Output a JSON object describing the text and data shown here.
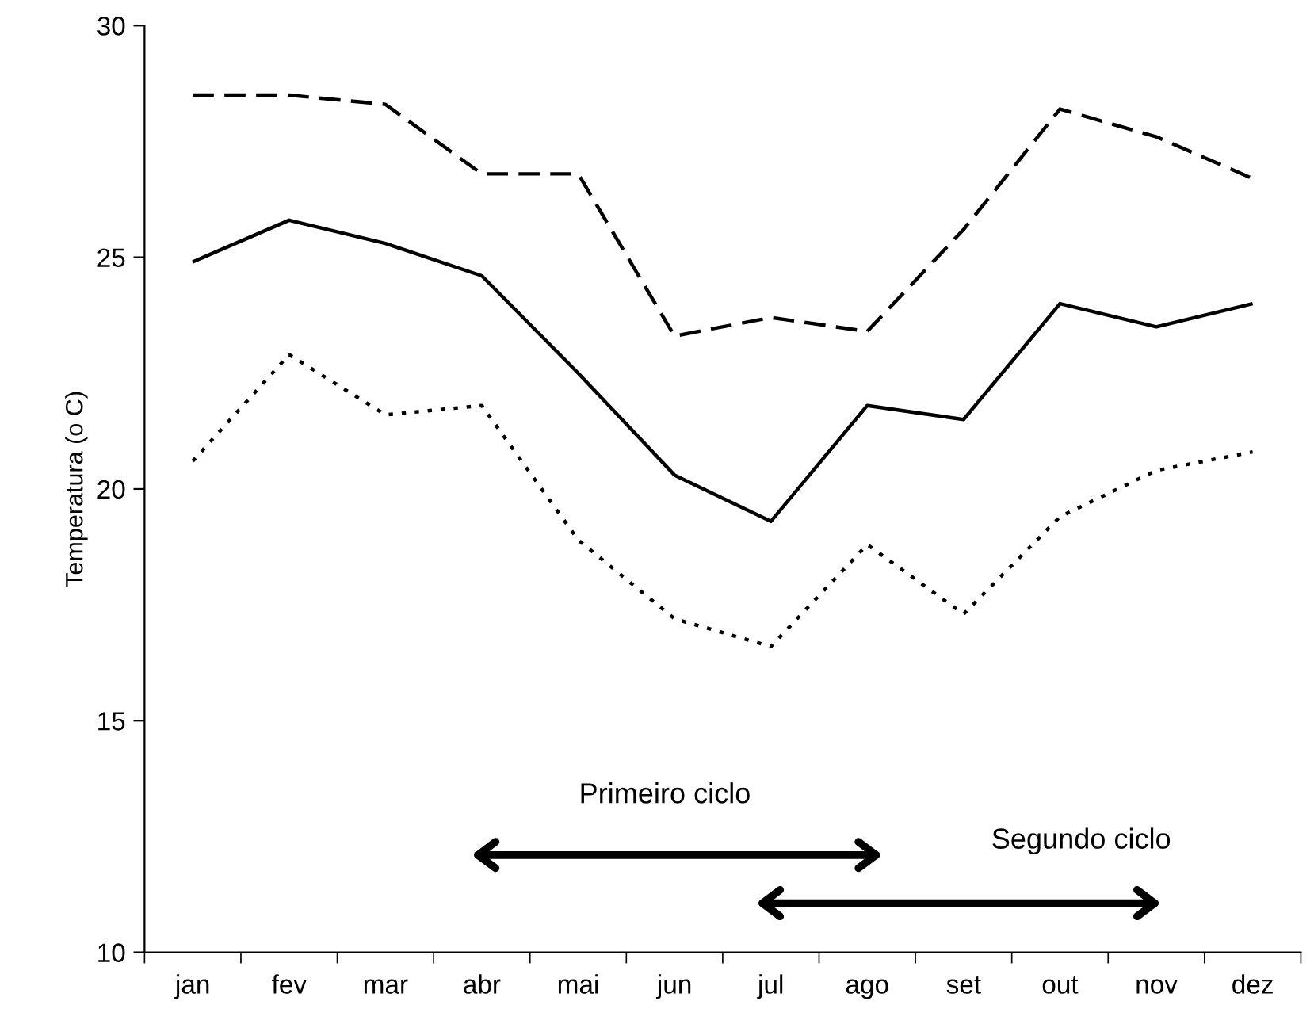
{
  "chart_data": {
    "type": "line",
    "ylabel": "Temperatura (o C)",
    "categories": [
      "jan",
      "fev",
      "mar",
      "abr",
      "mai",
      "jun",
      "jul",
      "ago",
      "set",
      "out",
      "nov",
      "dez"
    ],
    "series": [
      {
        "color": "#000000",
        "line_style": "dashed",
        "values": [
          28.5,
          28.5,
          28.3,
          26.8,
          26.8,
          23.3,
          23.7,
          23.4,
          25.6,
          28.2,
          27.6,
          26.7
        ]
      },
      {
        "color": "#000000",
        "line_style": "solid",
        "values": [
          24.9,
          25.8,
          25.3,
          24.6,
          22.5,
          20.3,
          19.3,
          21.8,
          21.5,
          24.0,
          23.5,
          24.0
        ]
      },
      {
        "color": "#000000",
        "line_style": "dotted",
        "values": [
          20.6,
          22.9,
          21.6,
          21.8,
          18.9,
          17.2,
          16.6,
          18.8,
          17.3,
          19.4,
          20.4,
          20.8
        ]
      }
    ],
    "annotations": [
      "Primeiro ciclo",
      "Segundo ciclo"
    ],
    "ylim": [
      10,
      30
    ],
    "yticks": [
      10,
      15,
      20,
      25,
      30
    ],
    "grid": false,
    "marker": "none"
  }
}
